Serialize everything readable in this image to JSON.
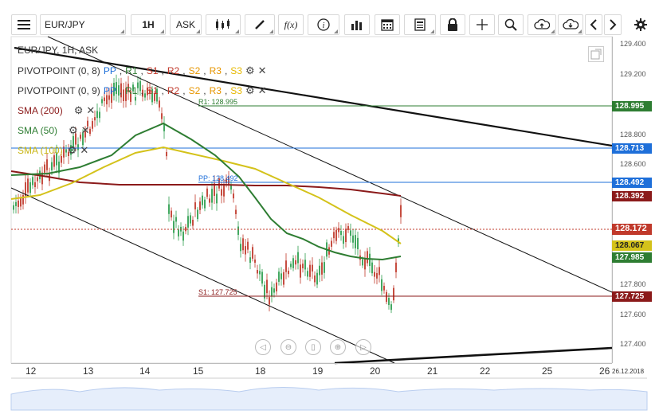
{
  "toolbar": {
    "symbol": "EUR/JPY",
    "timeframe": "1H",
    "price_side": "ASK",
    "formula_label": "f(x)"
  },
  "legend": {
    "instrument": "EUR/JPY, 1H, ASK",
    "pivot1_name": "PIVOTPOINT (0, 8)",
    "pivot2_name": "PIVOTPOINT (0, 9)",
    "levels": [
      "PP",
      "R1",
      "S1",
      "R2",
      "S2",
      "R3",
      "S3"
    ],
    "sma200": "SMA (200)",
    "sma50": "SMA (50)",
    "sma100": "SMA (100)"
  },
  "annotations": {
    "r1": "R1: 128.995",
    "pp": "PP: 128.492",
    "s1": "S1: 127.725"
  },
  "y_axis": [
    "129.400",
    "129.200",
    "128.800",
    "128.600",
    "127.800",
    "127.600",
    "127.400"
  ],
  "y_tags": [
    {
      "label": "128.995",
      "color": "#2e7d32"
    },
    {
      "label": "128.713",
      "color": "#1e6fd9"
    },
    {
      "label": "128.492",
      "color": "#1e6fd9"
    },
    {
      "label": "128.392",
      "color": "#8b1a1a"
    },
    {
      "label": "128.172",
      "color": "#c0392b"
    },
    {
      "label": "128.067",
      "color": "#d4c21a"
    },
    {
      "label": "127.985",
      "color": "#2e7d32"
    },
    {
      "label": "127.725",
      "color": "#8b1a1a"
    }
  ],
  "x_axis": [
    "12",
    "13",
    "14",
    "15",
    "18",
    "19",
    "20",
    "21",
    "22",
    "25",
    "26",
    "26.12.2018"
  ],
  "colors": {
    "pp": "#1e6fd9",
    "r1": "#2e7d32",
    "s1": "#c0392b",
    "r2": "#c0392b",
    "s2": "#e69500",
    "r3": "#e69500",
    "s3": "#e6b800",
    "sma200": "#8b1a1a",
    "sma50": "#2e7d32",
    "sma100": "#d4c21a",
    "candle_up": "#2e9e4f",
    "candle_down": "#c0392b"
  }
}
